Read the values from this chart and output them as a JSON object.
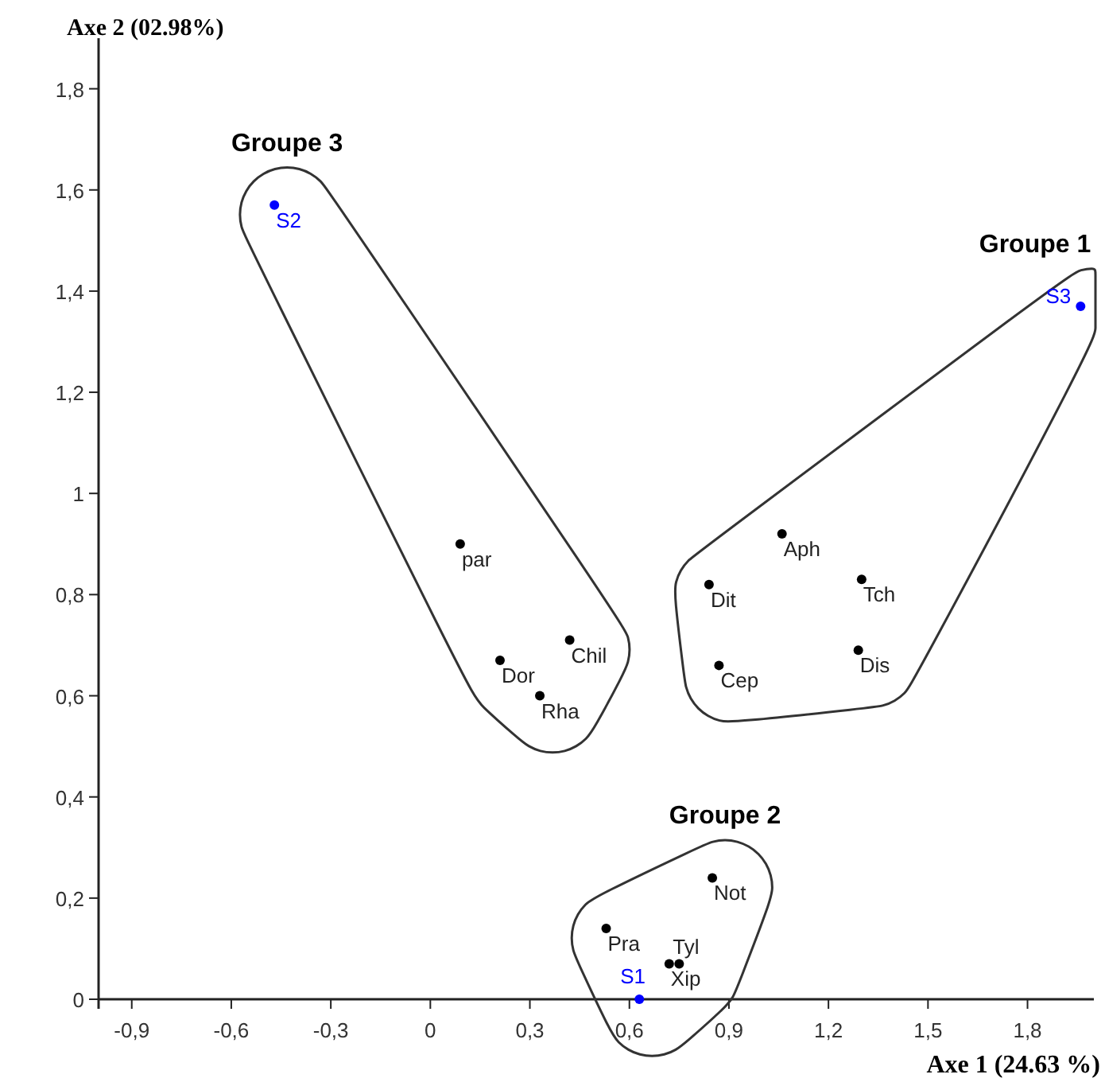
{
  "chart_data": {
    "type": "scatter",
    "xlabel": "Axe 1 (24.63 %)",
    "ylabel": "Axe 2 (02.98%)",
    "xlim": [
      -1,
      2
    ],
    "ylim": [
      0,
      1.9
    ],
    "xticks": [
      {
        "value": -0.9,
        "label": "-0,9"
      },
      {
        "value": -0.6,
        "label": "-0,6"
      },
      {
        "value": -0.3,
        "label": "-0,3"
      },
      0,
      {
        "value": 0.3,
        "label": "0,3"
      },
      {
        "value": 0.6,
        "label": "0,6"
      },
      {
        "value": 0.9,
        "label": "0,9"
      },
      {
        "value": 1.2,
        "label": "1,2"
      },
      {
        "value": 1.5,
        "label": "1,5"
      },
      {
        "value": 1.8,
        "label": "1,8"
      }
    ],
    "yticks": [
      0,
      {
        "value": 0.2,
        "label": "0,2"
      },
      {
        "value": 0.4,
        "label": "0,4"
      },
      {
        "value": 0.6,
        "label": "0,6"
      },
      {
        "value": 0.8,
        "label": "0,8"
      },
      1,
      {
        "value": 1.2,
        "label": "1,2"
      },
      {
        "value": 1.4,
        "label": "1,4"
      },
      {
        "value": 1.6,
        "label": "1,6"
      },
      {
        "value": 1.8,
        "label": "1,8"
      }
    ],
    "grid": false,
    "marker": "circle",
    "series": [
      {
        "name": "Groupe 1",
        "x": [
          1.96,
          1.06,
          0.84,
          1.3,
          1.29,
          0.87
        ],
        "values": [
          1.37,
          0.92,
          0.82,
          0.83,
          0.69,
          0.66
        ],
        "colors": [
          "#0000ff",
          "#000000",
          "#000000",
          "#000000",
          "#000000",
          "#000000"
        ],
        "value_labels": [
          "S3",
          "Aph",
          "Dit",
          "Tch",
          "Dis",
          "Cep"
        ]
      },
      {
        "name": "Groupe 2",
        "x": [
          0.63,
          0.85,
          0.53,
          0.72,
          0.75
        ],
        "values": [
          0,
          0.24,
          0.14,
          0.07,
          0.07
        ],
        "colors": [
          "#0000ff",
          "#000000",
          "#000000",
          "#000000",
          "#000000"
        ],
        "value_labels": [
          "S1",
          "Not",
          "Pra",
          "Xip",
          "Tyl"
        ]
      },
      {
        "name": "Groupe 3",
        "x": [
          -0.47,
          0.09,
          0.21,
          0.33,
          0.42
        ],
        "values": [
          1.57,
          0.9,
          0.67,
          0.6,
          0.71
        ],
        "colors": [
          "#0000ff",
          "#000000",
          "#000000",
          "#000000",
          "#000000"
        ],
        "value_labels": [
          "S2",
          "par",
          "Dor",
          "Rha",
          "Chil"
        ]
      }
    ]
  }
}
